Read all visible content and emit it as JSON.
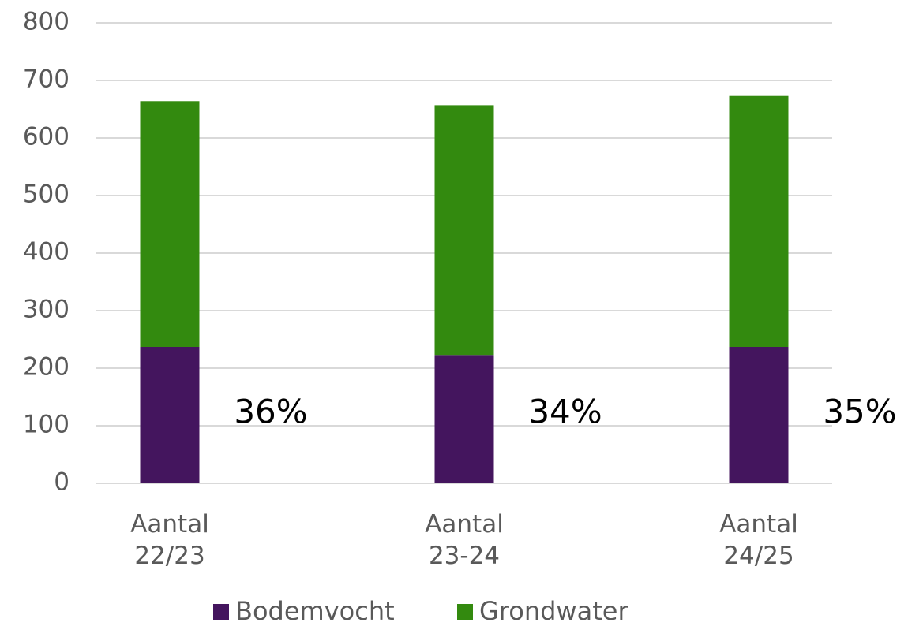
{
  "chart_data": {
    "type": "stacked-bar",
    "categories": [
      "Aantal 22/23",
      "Aantal 23-24",
      "Aantal 24/25"
    ],
    "series": [
      {
        "name": "Bodemvocht",
        "color": "#44155e",
        "values": [
          237,
          223,
          237
        ]
      },
      {
        "name": "Grondwater",
        "color": "#338a0f",
        "values": [
          427,
          434,
          436
        ]
      }
    ],
    "annotations": [
      "36%",
      "34%",
      "35%"
    ],
    "ylim": [
      0,
      800
    ],
    "yticks": [
      0,
      100,
      200,
      300,
      400,
      500,
      600,
      700,
      800
    ],
    "grid": true,
    "legend": "bottom"
  }
}
